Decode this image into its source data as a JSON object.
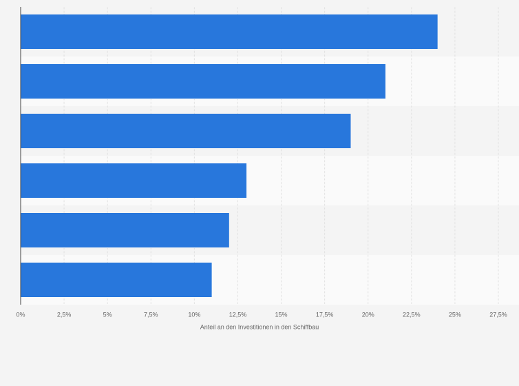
{
  "chart_data": {
    "type": "bar",
    "orientation": "horizontal",
    "categories": [
      null,
      null,
      null,
      null,
      null,
      null
    ],
    "values": [
      24,
      21,
      19,
      13,
      12,
      11
    ],
    "color": "#2877dc",
    "xlabel": "Anteil an den Investitionen in den Schiffbau",
    "xlim": [
      0,
      27.5
    ],
    "xticks": [
      {
        "value": 0,
        "label": "0%"
      },
      {
        "value": 2.5,
        "label": "2,5%"
      },
      {
        "value": 5,
        "label": "5%"
      },
      {
        "value": 7.5,
        "label": "7,5%"
      },
      {
        "value": 10,
        "label": "10%"
      },
      {
        "value": 12.5,
        "label": "12,5%"
      },
      {
        "value": 15,
        "label": "15%"
      },
      {
        "value": 17.5,
        "label": "17,5%"
      },
      {
        "value": 20,
        "label": "20%"
      },
      {
        "value": 22.5,
        "label": "22,5%"
      },
      {
        "value": 25,
        "label": "25%"
      },
      {
        "value": 27.5,
        "label": "27,5%"
      }
    ],
    "grid": true
  }
}
